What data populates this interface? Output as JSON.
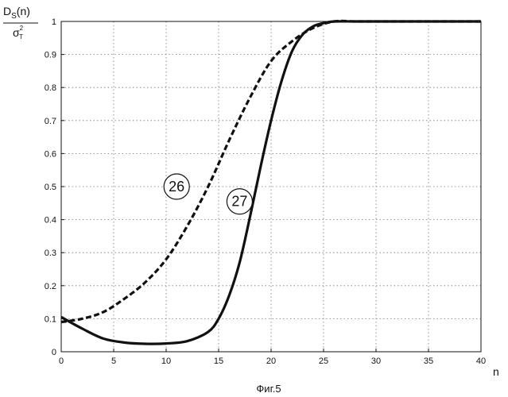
{
  "chart_data": {
    "type": "line",
    "title": "",
    "xlabel": "n",
    "ylabel_main": "D",
    "ylabel_sub": "S",
    "ylabel_arg": "(n)",
    "ylabel_den_main": "σ",
    "ylabel_den_sup": "2",
    "ylabel_den_sub": "T",
    "caption": "Фиг.5",
    "xlim": [
      0,
      40
    ],
    "ylim": [
      0,
      1
    ],
    "xticks": [
      0,
      5,
      10,
      15,
      20,
      25,
      30,
      35,
      40
    ],
    "yticks": [
      0,
      0.1,
      0.2,
      0.3,
      0.4,
      0.5,
      0.6,
      0.7,
      0.8,
      0.9,
      1
    ],
    "grid": true,
    "series": [
      {
        "name": "26",
        "style": "dashed",
        "color": "#111111",
        "label_at": [
          11,
          0.5
        ],
        "x": [
          0,
          2,
          4,
          6,
          8,
          10,
          12,
          14,
          16,
          18,
          20,
          22,
          24,
          26,
          28,
          30,
          35,
          40
        ],
        "y": [
          0.09,
          0.1,
          0.12,
          0.16,
          0.21,
          0.28,
          0.38,
          0.5,
          0.64,
          0.77,
          0.88,
          0.94,
          0.98,
          1.0,
          1.0,
          1.0,
          1.0,
          1.0
        ]
      },
      {
        "name": "27",
        "style": "solid",
        "color": "#111111",
        "label_at": [
          17,
          0.455
        ],
        "x": [
          0,
          2,
          4,
          6,
          8,
          10,
          12,
          14,
          15,
          16,
          17,
          18,
          19,
          20,
          21,
          22,
          23,
          24,
          25,
          26,
          28,
          30,
          35,
          40
        ],
        "y": [
          0.105,
          0.07,
          0.04,
          0.028,
          0.024,
          0.025,
          0.032,
          0.06,
          0.1,
          0.17,
          0.27,
          0.41,
          0.56,
          0.7,
          0.82,
          0.91,
          0.96,
          0.985,
          0.995,
          1.0,
          1.0,
          1.0,
          1.0,
          1.0
        ]
      }
    ]
  }
}
